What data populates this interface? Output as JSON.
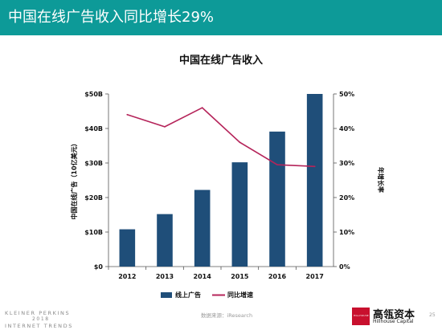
{
  "header": {
    "title": "中国在线广告收入同比增长29%",
    "background": "#0d9a98"
  },
  "footer": {
    "brand_line1": "KLEINER PERKINS",
    "brand_line2": "2018",
    "brand_line3": "INTERNET TRENDS",
    "source": "数据来源：iResearch",
    "logo_text": "HILLHOUSE",
    "partner_cn": "高瓴资本",
    "partner_en": "Hillhouse Capital",
    "page_number": "25"
  },
  "chart_data": {
    "type": "bar",
    "title": "中国在线广告收入",
    "categories": [
      "2012",
      "2013",
      "2014",
      "2015",
      "2016",
      "2017"
    ],
    "series": [
      {
        "name": "线上广告",
        "type": "bar",
        "axis": "left",
        "color": "#1f4e79",
        "values": [
          10.8,
          15.2,
          22.2,
          30.2,
          39.1,
          50.0
        ]
      },
      {
        "name": "同比增速",
        "type": "line",
        "axis": "right",
        "color": "#b5245a",
        "values": [
          44,
          40.5,
          46,
          36,
          29.5,
          29
        ]
      }
    ],
    "ylabel": "中国在线广告（10亿美元）",
    "ylim": [
      0,
      50
    ],
    "yticks": [
      "$0",
      "$10B",
      "$20B",
      "$30B",
      "$40B",
      "$50B"
    ],
    "y2label": "年增长率",
    "y2lim": [
      0,
      50
    ],
    "y2ticks": [
      "0%",
      "10%",
      "20%",
      "30%",
      "40%",
      "50%"
    ],
    "grid": false,
    "legend_position": "bottom"
  }
}
